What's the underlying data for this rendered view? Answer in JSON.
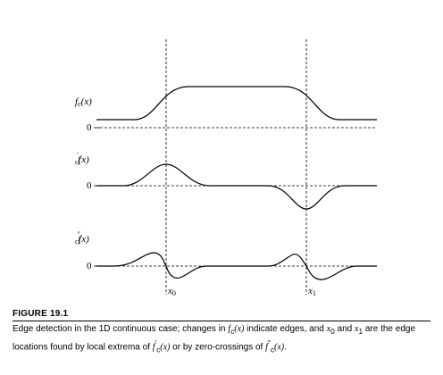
{
  "figure": {
    "panels": [
      {
        "id": "fc",
        "label_main": "f",
        "label_sub": "c",
        "label_prime": "",
        "label_arg": "(x)",
        "zero_label": "0"
      },
      {
        "id": "fc1",
        "label_main": "f",
        "label_sub": "c",
        "label_prime": "′",
        "label_arg": "(x)",
        "zero_label": "0"
      },
      {
        "id": "fc2",
        "label_main": "f",
        "label_sub": "c",
        "label_prime": "″",
        "label_arg": "(x)",
        "zero_label": "0"
      }
    ],
    "x_markers": [
      {
        "main": "x",
        "sub": "0"
      },
      {
        "main": "x",
        "sub": "1"
      }
    ]
  },
  "caption": {
    "title": "FIGURE 19.1",
    "t1": "Edge detection in the 1D continuous case; changes in ",
    "f1": "f",
    "f1_sub": "c",
    "f1_arg": "(x)",
    "t2": " indicate edges, and ",
    "x0": "x",
    "x0_sub": "0",
    "t3": " and ",
    "x1": "x",
    "x1_sub": "1",
    "t4": " are the edge locations found by local extrema of ",
    "f2": "f",
    "f2_prime": "′",
    "f2_sub": "c",
    "f2_arg": "(x)",
    "t5": " or by zero-crossings of ",
    "f3": "f",
    "f3_prime": "″",
    "f3_sub": "c",
    "f3_arg": "(x)",
    "t6": "."
  }
}
